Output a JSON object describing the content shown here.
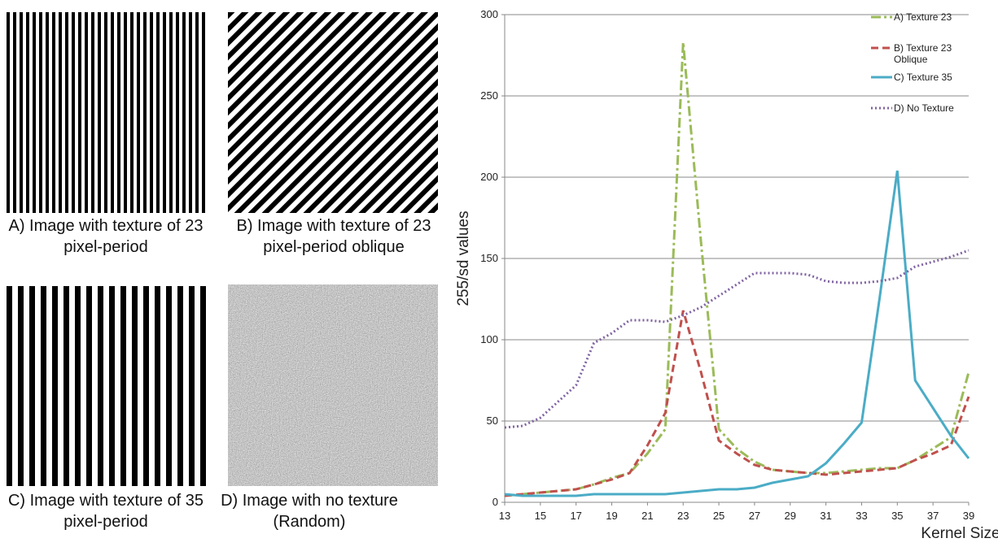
{
  "panels": [
    {
      "caption": "A)  Image with texture of 23 pixel-period"
    },
    {
      "caption": "B) Image with texture of 23 pixel-period oblique"
    },
    {
      "caption": "C) Image with texture of 35 pixel-period"
    },
    {
      "caption": "D) Image with no texture (Random)"
    }
  ],
  "chart_data": {
    "type": "line",
    "x_label": "Kernel Size",
    "y_label": "255/sd values",
    "x": [
      13,
      14,
      15,
      16,
      17,
      18,
      19,
      20,
      21,
      22,
      23,
      24,
      25,
      26,
      27,
      28,
      29,
      30,
      31,
      32,
      33,
      34,
      35,
      36,
      37,
      38,
      39
    ],
    "xlim": [
      13,
      39
    ],
    "xticks": [
      13,
      15,
      17,
      19,
      21,
      23,
      25,
      27,
      29,
      31,
      33,
      35,
      37,
      39
    ],
    "ylim": [
      0,
      300
    ],
    "yticks": [
      0,
      50,
      100,
      150,
      200,
      250,
      300
    ],
    "grid": true,
    "legend": "top-right",
    "series": [
      {
        "name": "A) Texture 23",
        "color": "#9bbb59",
        "linestyle": "dashdot",
        "values": [
          4,
          5,
          6,
          7,
          8,
          11,
          15,
          18,
          30,
          45,
          283,
          160,
          45,
          33,
          25,
          20,
          19,
          18,
          18,
          19,
          20,
          21,
          21,
          26,
          33,
          40,
          80
        ]
      },
      {
        "name": "B) Texture 23 Oblique",
        "color": "#c0504d",
        "linestyle": "dashed",
        "values": [
          4,
          5,
          6,
          7,
          8,
          11,
          14,
          18,
          35,
          55,
          118,
          80,
          38,
          30,
          23,
          20,
          19,
          18,
          17,
          18,
          19,
          20,
          21,
          26,
          30,
          35,
          65
        ]
      },
      {
        "name": "C) Texture 35",
        "color": "#4bacc6",
        "linestyle": "solid",
        "values": [
          5,
          4,
          4,
          4,
          4,
          5,
          5,
          5,
          5,
          5,
          6,
          7,
          8,
          8,
          9,
          12,
          14,
          16,
          24,
          36,
          49,
          125,
          204,
          75,
          58,
          41,
          27
        ]
      },
      {
        "name": "D) No Texture",
        "color": "#8064a2",
        "linestyle": "dotted",
        "values": [
          46,
          47,
          52,
          62,
          72,
          98,
          104,
          112,
          112,
          111,
          115,
          120,
          127,
          134,
          141,
          141,
          141,
          140,
          136,
          135,
          135,
          136,
          138,
          145,
          148,
          151,
          155
        ]
      }
    ]
  }
}
